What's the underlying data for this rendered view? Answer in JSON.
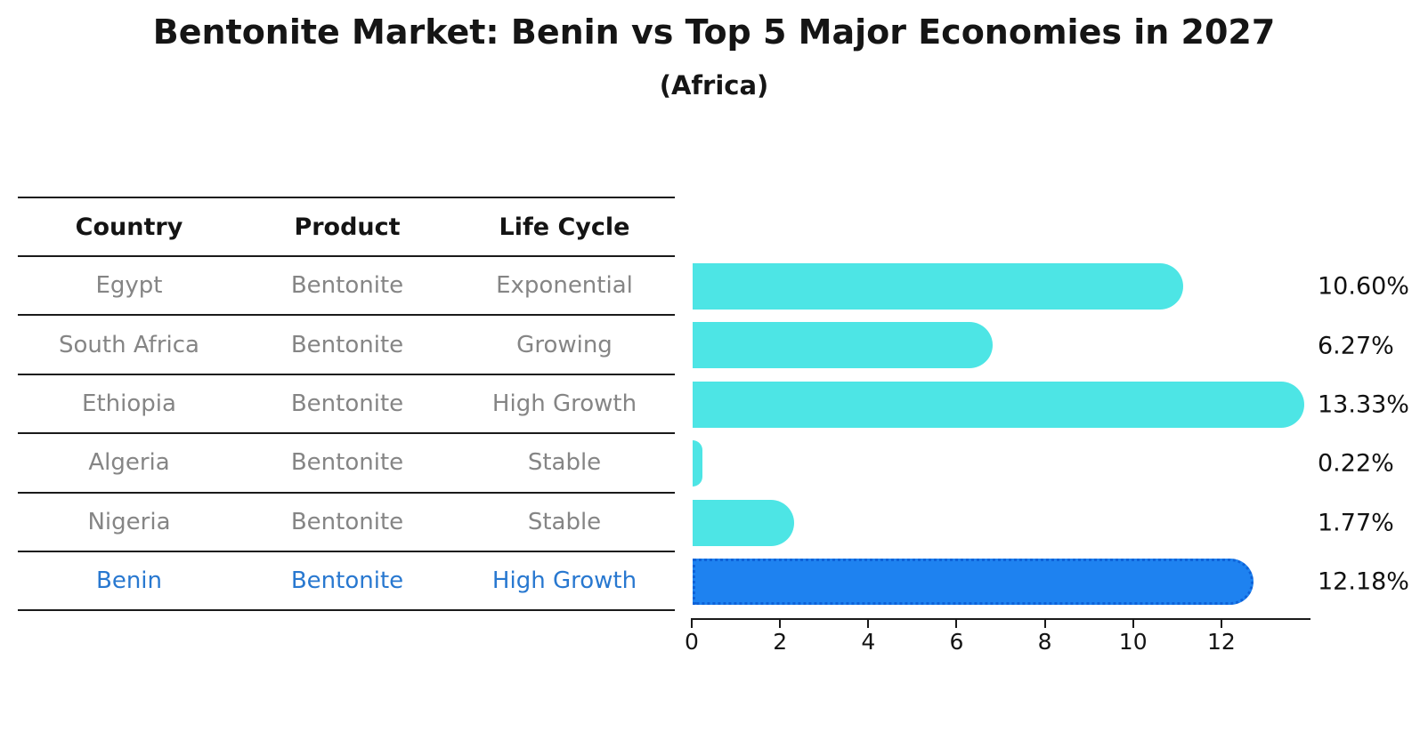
{
  "title": "Bentonite Market: Benin vs Top 5 Major Economies in 2027",
  "subtitle": "(Africa)",
  "table": {
    "headers": [
      "Country",
      "Product",
      "Life Cycle"
    ],
    "rows": [
      {
        "country": "Egypt",
        "product": "Bentonite",
        "life_cycle": "Exponential",
        "highlighted": false
      },
      {
        "country": "South Africa",
        "product": "Bentonite",
        "life_cycle": "Growing",
        "highlighted": false
      },
      {
        "country": "Ethiopia",
        "product": "Bentonite",
        "life_cycle": "High Growth",
        "highlighted": false
      },
      {
        "country": "Algeria",
        "product": "Bentonite",
        "life_cycle": "Stable",
        "highlighted": false
      },
      {
        "country": "Nigeria",
        "product": "Bentonite",
        "life_cycle": "Stable",
        "highlighted": false
      },
      {
        "country": "Benin",
        "product": "Bentonite",
        "life_cycle": "High Growth",
        "highlighted": true
      }
    ]
  },
  "chart_data": {
    "type": "bar",
    "orientation": "horizontal",
    "title": "Bentonite Market: Benin vs Top 5 Major Economies in 2027",
    "subtitle": "(Africa)",
    "categories": [
      "Egypt",
      "South Africa",
      "Ethiopia",
      "Algeria",
      "Nigeria",
      "Benin"
    ],
    "values": [
      10.6,
      6.27,
      13.33,
      0.22,
      1.77,
      12.18
    ],
    "value_labels": [
      "10.60%",
      "6.27%",
      "13.33%",
      "0.22%",
      "1.77%",
      "12.18%"
    ],
    "x_ticks": [
      0,
      2,
      4,
      6,
      8,
      10,
      12
    ],
    "xlim": [
      0,
      14
    ],
    "grid": false,
    "legend": "none",
    "highlight_index": 5,
    "colors": {
      "bar": "#4DE5E5",
      "highlight_bar": "#1E82F0",
      "highlight_border": "#0E62D8",
      "highlight_text": "#2878D0",
      "row_text": "#858585",
      "header_text": "#141414",
      "value_text": "#111111",
      "axis": "#1a1a1a"
    }
  }
}
